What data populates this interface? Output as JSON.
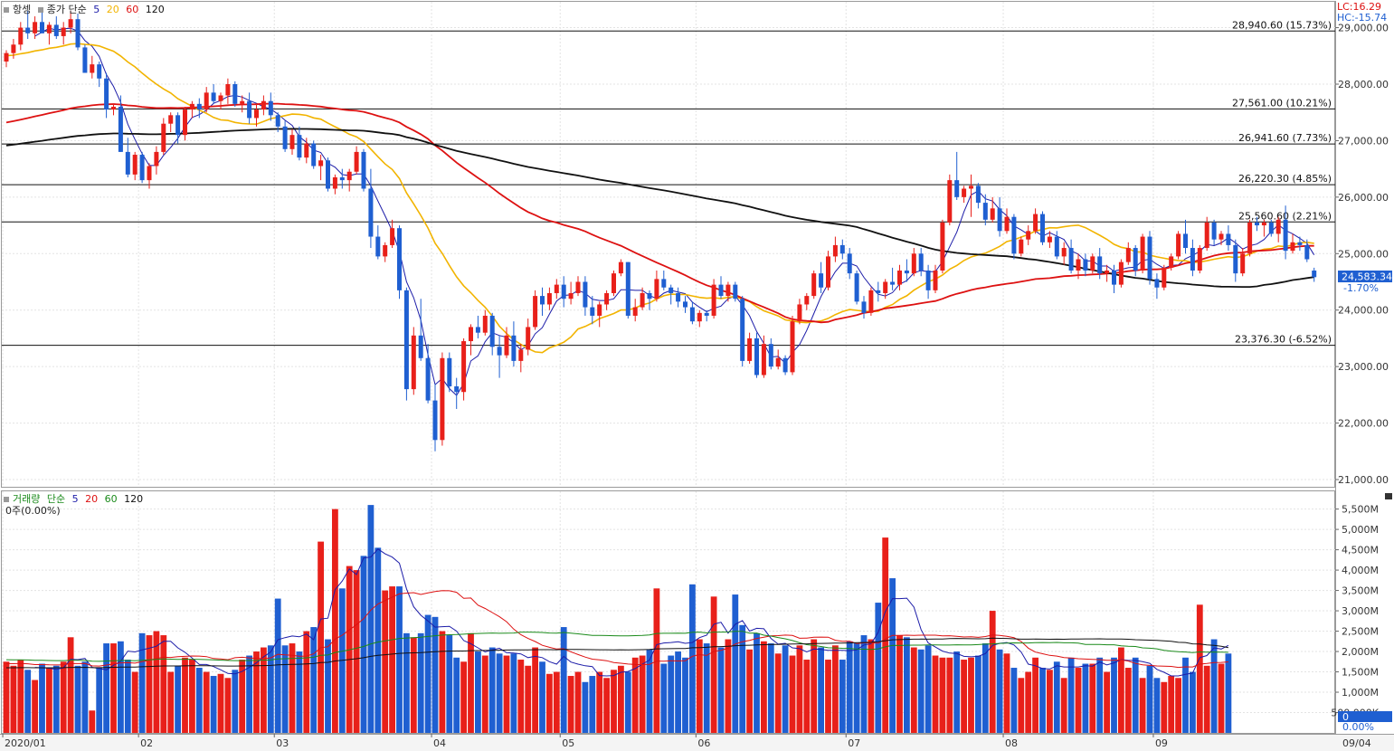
{
  "price_panel": {
    "symbol": "항셍",
    "close_label": "종가 단순",
    "ma_periods": [
      "5",
      "20",
      "60",
      "120"
    ],
    "ma_colors": [
      "#1c1ca8",
      "#f2b400",
      "#dd1111",
      "#111111"
    ],
    "lc_label": "LC:16.29",
    "hc_label": "HC:-15.74",
    "current_value": "24,583.34",
    "current_change": "-1.70%",
    "y_ticks": [
      "29,000.00",
      "28,000.00",
      "27,000.00",
      "26,000.00",
      "25,000.00",
      "24,000.00",
      "23,000.00",
      "22,000.00",
      "21,000.00"
    ],
    "levels": [
      {
        "price": 28940.6,
        "label": "28,940.60 (15.73%)"
      },
      {
        "price": 27561.0,
        "label": "27,561.00 (10.21%)"
      },
      {
        "price": 26941.6,
        "label": "26,941.60 (7.73%)"
      },
      {
        "price": 26220.3,
        "label": "26,220.30 (4.85%)"
      },
      {
        "price": 25560.6,
        "label": "25,560.60 (2.21%)"
      },
      {
        "price": 23376.3,
        "label": "23,376.30 (-6.52%)"
      }
    ]
  },
  "volume_panel": {
    "label": "거래량",
    "ma_label": "단순",
    "ma_periods": [
      "5",
      "20",
      "60",
      "120"
    ],
    "ma_colors": [
      "#1c1ca8",
      "#dd1111",
      "#1a8a1a",
      "#111111"
    ],
    "zero_label": "0주(0.00%)",
    "y_ticks": [
      "5,500M",
      "5,000M",
      "4,500M",
      "4,000M",
      "3,500M",
      "3,000M",
      "2,500M",
      "2,000M",
      "1,500M",
      "1,000M",
      "500,000K"
    ],
    "current_value": "0",
    "current_pct": "0.00%"
  },
  "x_axis": {
    "labels": [
      "2020/01",
      "02",
      "03",
      "04",
      "05",
      "06",
      "07",
      "08",
      "09"
    ],
    "last_label": "09/04"
  },
  "colors": {
    "up": "#e8201a",
    "down": "#1f5fd1"
  },
  "chart_data": {
    "type": "candlestick",
    "y_range": [
      21000,
      29500
    ],
    "volume_range_m": [
      0,
      5800
    ],
    "months": [
      {
        "label": "2020/01",
        "start_index": 0
      },
      {
        "label": "02",
        "start_index": 19
      },
      {
        "label": "03",
        "start_index": 38
      },
      {
        "label": "04",
        "start_index": 60
      },
      {
        "label": "05",
        "start_index": 78
      },
      {
        "label": "06",
        "start_index": 97
      },
      {
        "label": "07",
        "start_index": 118
      },
      {
        "label": "08",
        "start_index": 140
      },
      {
        "label": "09",
        "start_index": 161
      }
    ],
    "ohlc": [
      [
        28400,
        28600,
        28300,
        28550
      ],
      [
        28550,
        28800,
        28450,
        28700
      ],
      [
        28700,
        29100,
        28600,
        29000
      ],
      [
        29000,
        29300,
        28800,
        28900
      ],
      [
        28900,
        29200,
        28800,
        29100
      ],
      [
        29100,
        29300,
        28900,
        28900
      ],
      [
        28900,
        29100,
        28700,
        29050
      ],
      [
        29050,
        29200,
        28800,
        28850
      ],
      [
        28850,
        29100,
        28700,
        29000
      ],
      [
        29000,
        29300,
        28900,
        29150
      ],
      [
        29150,
        29250,
        28600,
        28650
      ],
      [
        28650,
        28700,
        28200,
        28200
      ],
      [
        28200,
        28500,
        28100,
        28350
      ],
      [
        28350,
        28400,
        27950,
        28100
      ],
      [
        28100,
        28200,
        27400,
        27550
      ],
      [
        27550,
        27650,
        27450,
        27600
      ],
      [
        27600,
        27800,
        26800,
        26800
      ],
      [
        26800,
        27050,
        26350,
        26400
      ],
      [
        26400,
        26800,
        26300,
        26750
      ],
      [
        26750,
        26800,
        26250,
        26300
      ],
      [
        26300,
        26600,
        26150,
        26550
      ],
      [
        26550,
        26900,
        26400,
        26800
      ],
      [
        26800,
        27400,
        26750,
        27300
      ],
      [
        27300,
        27500,
        27150,
        27450
      ],
      [
        27450,
        27500,
        26950,
        27100
      ],
      [
        27100,
        27600,
        27000,
        27550
      ],
      [
        27550,
        27700,
        27400,
        27650
      ],
      [
        27650,
        27750,
        27400,
        27550
      ],
      [
        27550,
        27950,
        27500,
        27850
      ],
      [
        27850,
        28000,
        27650,
        27700
      ],
      [
        27700,
        27850,
        27550,
        27800
      ],
      [
        27800,
        28100,
        27650,
        28000
      ],
      [
        28000,
        28050,
        27600,
        27650
      ],
      [
        27650,
        27800,
        27500,
        27700
      ],
      [
        27700,
        27850,
        27300,
        27400
      ],
      [
        27400,
        27650,
        27250,
        27550
      ],
      [
        27550,
        27800,
        27450,
        27700
      ],
      [
        27700,
        27850,
        27350,
        27450
      ],
      [
        27450,
        27500,
        27150,
        27250
      ],
      [
        27250,
        27350,
        26800,
        26850
      ],
      [
        26850,
        27200,
        26750,
        27100
      ],
      [
        27100,
        27250,
        26650,
        26700
      ],
      [
        26700,
        27050,
        26600,
        26950
      ],
      [
        26950,
        27000,
        26500,
        26550
      ],
      [
        26550,
        26750,
        26300,
        26650
      ],
      [
        26650,
        26700,
        26100,
        26150
      ],
      [
        26150,
        26400,
        26050,
        26350
      ],
      [
        26350,
        26500,
        26150,
        26300
      ],
      [
        26300,
        26500,
        26100,
        26450
      ],
      [
        26450,
        26900,
        26400,
        26800
      ],
      [
        26800,
        26850,
        26100,
        26150
      ],
      [
        26150,
        26500,
        25100,
        25300
      ],
      [
        25300,
        25500,
        24900,
        24950
      ],
      [
        24950,
        25200,
        24850,
        25150
      ],
      [
        25150,
        25600,
        25100,
        25450
      ],
      [
        25450,
        25500,
        24200,
        24350
      ],
      [
        24350,
        24400,
        22400,
        22600
      ],
      [
        22600,
        23700,
        22500,
        23550
      ],
      [
        23550,
        24200,
        23100,
        23150
      ],
      [
        23150,
        23400,
        22350,
        22400
      ],
      [
        22400,
        22700,
        21500,
        21700
      ],
      [
        21700,
        23250,
        21600,
        23150
      ],
      [
        23150,
        23250,
        22550,
        22650
      ],
      [
        22650,
        22800,
        22250,
        22550
      ],
      [
        22550,
        23500,
        22400,
        23450
      ],
      [
        23450,
        23750,
        23200,
        23700
      ],
      [
        23700,
        23900,
        23500,
        23600
      ],
      [
        23600,
        24000,
        23550,
        23900
      ],
      [
        23900,
        23950,
        23200,
        23350
      ],
      [
        23350,
        23550,
        22800,
        23200
      ],
      [
        23200,
        23700,
        23150,
        23550
      ],
      [
        23550,
        23800,
        23000,
        23100
      ],
      [
        23100,
        23400,
        22900,
        23300
      ],
      [
        23300,
        23850,
        23200,
        23700
      ],
      [
        23700,
        24350,
        23650,
        24250
      ],
      [
        24250,
        24400,
        23900,
        24100
      ],
      [
        24100,
        24400,
        24000,
        24300
      ],
      [
        24300,
        24550,
        24200,
        24450
      ],
      [
        24450,
        24600,
        24050,
        24200
      ],
      [
        24200,
        24500,
        24100,
        24300
      ],
      [
        24300,
        24600,
        24250,
        24500
      ],
      [
        24500,
        24600,
        23900,
        24050
      ],
      [
        24050,
        24250,
        23750,
        23900
      ],
      [
        23900,
        24150,
        23700,
        24100
      ],
      [
        24100,
        24350,
        24000,
        24300
      ],
      [
        24300,
        24700,
        24250,
        24650
      ],
      [
        24650,
        24900,
        24600,
        24850
      ],
      [
        24850,
        24850,
        23850,
        23900
      ],
      [
        23900,
        24200,
        23800,
        24050
      ],
      [
        24050,
        24400,
        24000,
        24300
      ],
      [
        24300,
        24350,
        24000,
        24200
      ],
      [
        24200,
        24700,
        24150,
        24550
      ],
      [
        24550,
        24700,
        24350,
        24400
      ],
      [
        24400,
        24450,
        24100,
        24300
      ],
      [
        24300,
        24400,
        24050,
        24150
      ],
      [
        24150,
        24250,
        23950,
        24050
      ],
      [
        24050,
        24150,
        23750,
        23800
      ],
      [
        23800,
        24000,
        23700,
        23950
      ],
      [
        23950,
        24000,
        23800,
        23900
      ],
      [
        23900,
        24550,
        23850,
        24450
      ],
      [
        24450,
        24600,
        24200,
        24250
      ],
      [
        24250,
        24500,
        24150,
        24450
      ],
      [
        24450,
        24500,
        24150,
        24200
      ],
      [
        24200,
        24250,
        23000,
        23100
      ],
      [
        23100,
        23600,
        23050,
        23500
      ],
      [
        23500,
        23600,
        22800,
        22850
      ],
      [
        22850,
        23550,
        22800,
        23400
      ],
      [
        23400,
        23500,
        22950,
        23000
      ],
      [
        23000,
        23300,
        22950,
        23150
      ],
      [
        23150,
        23200,
        22850,
        22900
      ],
      [
        22900,
        23900,
        22850,
        23800
      ],
      [
        23800,
        24200,
        23750,
        24100
      ],
      [
        24100,
        24300,
        24000,
        24250
      ],
      [
        24250,
        24700,
        24200,
        24650
      ],
      [
        24650,
        24850,
        24300,
        24400
      ],
      [
        24400,
        25050,
        24350,
        24950
      ],
      [
        24950,
        25300,
        24850,
        25150
      ],
      [
        25150,
        25250,
        24900,
        25000
      ],
      [
        25000,
        25100,
        24550,
        24650
      ],
      [
        24650,
        24700,
        24100,
        24150
      ],
      [
        24150,
        24250,
        23850,
        23950
      ],
      [
        23950,
        24400,
        23900,
        24350
      ],
      [
        24350,
        24500,
        24150,
        24300
      ],
      [
        24300,
        24550,
        24200,
        24500
      ],
      [
        24500,
        24750,
        24350,
        24450
      ],
      [
        24450,
        24800,
        24350,
        24700
      ],
      [
        24700,
        24900,
        24500,
        24650
      ],
      [
        24650,
        25100,
        24600,
        25000
      ],
      [
        25000,
        25100,
        24600,
        24700
      ],
      [
        24700,
        24800,
        24200,
        24350
      ],
      [
        24350,
        24800,
        24300,
        24700
      ],
      [
        24700,
        25600,
        24650,
        25550
      ],
      [
        25550,
        26400,
        25500,
        26300
      ],
      [
        26300,
        26800,
        25950,
        26000
      ],
      [
        26000,
        26200,
        25900,
        26150
      ],
      [
        26150,
        26400,
        25650,
        26200
      ],
      [
        26200,
        26250,
        25800,
        25900
      ],
      [
        25900,
        26050,
        25500,
        25600
      ],
      [
        25600,
        26000,
        25550,
        25800
      ],
      [
        25800,
        26000,
        25300,
        25400
      ],
      [
        25400,
        25800,
        25350,
        25650
      ],
      [
        25650,
        25700,
        24900,
        25000
      ],
      [
        25000,
        25300,
        24950,
        25250
      ],
      [
        25250,
        25500,
        25150,
        25400
      ],
      [
        25400,
        25800,
        25350,
        25700
      ],
      [
        25700,
        25750,
        25150,
        25200
      ],
      [
        25200,
        25400,
        25100,
        25300
      ],
      [
        25300,
        25400,
        24900,
        24950
      ],
      [
        24950,
        25200,
        24800,
        25100
      ],
      [
        25100,
        25250,
        24650,
        24700
      ],
      [
        24700,
        25000,
        24550,
        24900
      ],
      [
        24900,
        25000,
        24600,
        24700
      ],
      [
        24700,
        25000,
        24650,
        24950
      ],
      [
        24950,
        25100,
        24550,
        24650
      ],
      [
        24650,
        24800,
        24500,
        24700
      ],
      [
        24700,
        24800,
        24300,
        24450
      ],
      [
        24450,
        24900,
        24400,
        24850
      ],
      [
        24850,
        25200,
        24800,
        25100
      ],
      [
        25100,
        25150,
        24600,
        24700
      ],
      [
        24700,
        25350,
        24650,
        25300
      ],
      [
        25300,
        25400,
        24450,
        24550
      ],
      [
        24550,
        24650,
        24200,
        24400
      ],
      [
        24400,
        24800,
        24350,
        24750
      ],
      [
        24750,
        25000,
        24700,
        24950
      ],
      [
        24950,
        25400,
        24900,
        25350
      ],
      [
        25350,
        25600,
        25000,
        25100
      ],
      [
        25100,
        25250,
        24600,
        24700
      ],
      [
        24700,
        25150,
        24650,
        25100
      ],
      [
        25100,
        25650,
        25050,
        25550
      ],
      [
        25550,
        25600,
        25150,
        25250
      ],
      [
        25250,
        25400,
        25150,
        25350
      ],
      [
        25350,
        25500,
        25050,
        25150
      ],
      [
        25150,
        25250,
        24500,
        24650
      ],
      [
        24650,
        25100,
        24600,
        25000
      ],
      [
        25000,
        25600,
        24950,
        25550
      ],
      [
        25550,
        25650,
        25400,
        25500
      ],
      [
        25500,
        25600,
        25300,
        25550
      ],
      [
        25550,
        25600,
        25300,
        25350
      ],
      [
        25350,
        25650,
        25200,
        25600
      ],
      [
        25600,
        25850,
        24900,
        25050
      ],
      [
        25050,
        25350,
        25000,
        25200
      ],
      [
        25200,
        25300,
        25050,
        25150
      ],
      [
        25150,
        25250,
        24850,
        24900
      ],
      [
        24700,
        24750,
        24500,
        24583
      ]
    ],
    "volume_m": [
      1750,
      1650,
      1800,
      1550,
      1300,
      1700,
      1600,
      1650,
      1750,
      2350,
      1650,
      1750,
      550,
      1600,
      2200,
      2200,
      2250,
      1800,
      1500,
      2450,
      2400,
      2500,
      2400,
      1500,
      1650,
      1850,
      1800,
      1600,
      1500,
      1400,
      1450,
      1350,
      1550,
      1800,
      1900,
      2000,
      2100,
      2150,
      3300,
      2150,
      2200,
      2000,
      2500,
      2600,
      4700,
      2300,
      5500,
      3550,
      4100,
      4000,
      4350,
      5600,
      4550,
      3500,
      3600,
      3600,
      2450,
      2350,
      2450,
      2900,
      2850,
      2500,
      2400,
      1850,
      1750,
      2450,
      2000,
      1900,
      2100,
      1950,
      1900,
      1950,
      1800,
      1650,
      2100,
      1750,
      1450,
      1500,
      2600,
      1400,
      1500,
      1250,
      1400,
      1500,
      1350,
      1550,
      1650,
      1500,
      1850,
      1900,
      2050,
      3550,
      1700,
      1900,
      2000,
      1850,
      3650,
      2300,
      2200,
      3350,
      2100,
      2300,
      3400,
      2650,
      2050,
      2450,
      2250,
      2200,
      1950,
      2150,
      1900,
      2150,
      1800,
      2300,
      2100,
      1800,
      2150,
      1800,
      2250,
      2200,
      2400,
      2300,
      3200,
      4800,
      3800,
      2400,
      2350,
      2100,
      2050,
      2150,
      1900,
      1850,
      1850,
      2000,
      1800,
      1850,
      1900,
      2200,
      3000,
      2050,
      1950,
      1600,
      1350,
      1500,
      1850,
      1600,
      1550,
      1750,
      1350,
      1850,
      1600,
      1700,
      1700,
      1850,
      1500,
      1850,
      2100,
      1600,
      1850,
      1350,
      1650,
      1350,
      1250,
      1400,
      1350,
      1850,
      1500,
      3150,
      1650,
      2300,
      1700,
      1950
    ]
  }
}
